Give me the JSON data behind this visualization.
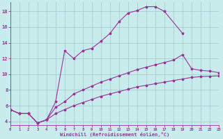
{
  "xlabel": "Windchill (Refroidissement éolien,°C)",
  "bg_color": "#c8ecec",
  "line_color": "#993399",
  "grid_color": "#a0b8c8",
  "xlim": [
    0,
    23
  ],
  "ylim": [
    3.5,
    19.2
  ],
  "yticks": [
    4,
    6,
    8,
    10,
    12,
    14,
    16,
    18
  ],
  "xticks": [
    0,
    1,
    2,
    3,
    4,
    5,
    6,
    7,
    8,
    9,
    10,
    11,
    12,
    13,
    14,
    15,
    16,
    17,
    18,
    19,
    20,
    21,
    22,
    23
  ],
  "line_top_x": [
    0,
    1,
    2,
    3,
    4,
    5,
    6,
    7,
    8,
    9,
    10,
    11,
    12,
    13,
    14,
    15,
    16,
    17,
    19
  ],
  "line_top_y": [
    5.5,
    5.0,
    5.0,
    3.8,
    4.2,
    6.5,
    13.0,
    12.0,
    13.0,
    13.3,
    14.2,
    15.2,
    16.7,
    17.8,
    18.1,
    18.6,
    18.6,
    18.0,
    15.2
  ],
  "line_mid_x": [
    0,
    1,
    2,
    3,
    4,
    5,
    6,
    7,
    8,
    9,
    10,
    11,
    12,
    13,
    14,
    15,
    16,
    17,
    18,
    19,
    20,
    21,
    22,
    23
  ],
  "line_mid_y": [
    5.5,
    5.0,
    5.0,
    3.8,
    4.2,
    5.8,
    6.5,
    7.5,
    8.0,
    8.5,
    9.0,
    9.4,
    9.8,
    10.2,
    10.6,
    10.9,
    11.2,
    11.5,
    11.8,
    12.5,
    10.7,
    10.5,
    10.4,
    10.2
  ],
  "line_bot_x": [
    0,
    1,
    2,
    3,
    4,
    5,
    6,
    7,
    8,
    9,
    10,
    11,
    12,
    13,
    14,
    15,
    16,
    17,
    18,
    19,
    20,
    21,
    22,
    23
  ],
  "line_bot_y": [
    5.5,
    5.0,
    5.0,
    3.8,
    4.2,
    5.0,
    5.5,
    6.0,
    6.4,
    6.8,
    7.2,
    7.5,
    7.8,
    8.1,
    8.4,
    8.6,
    8.8,
    9.0,
    9.2,
    9.4,
    9.6,
    9.7,
    9.75,
    9.8
  ]
}
